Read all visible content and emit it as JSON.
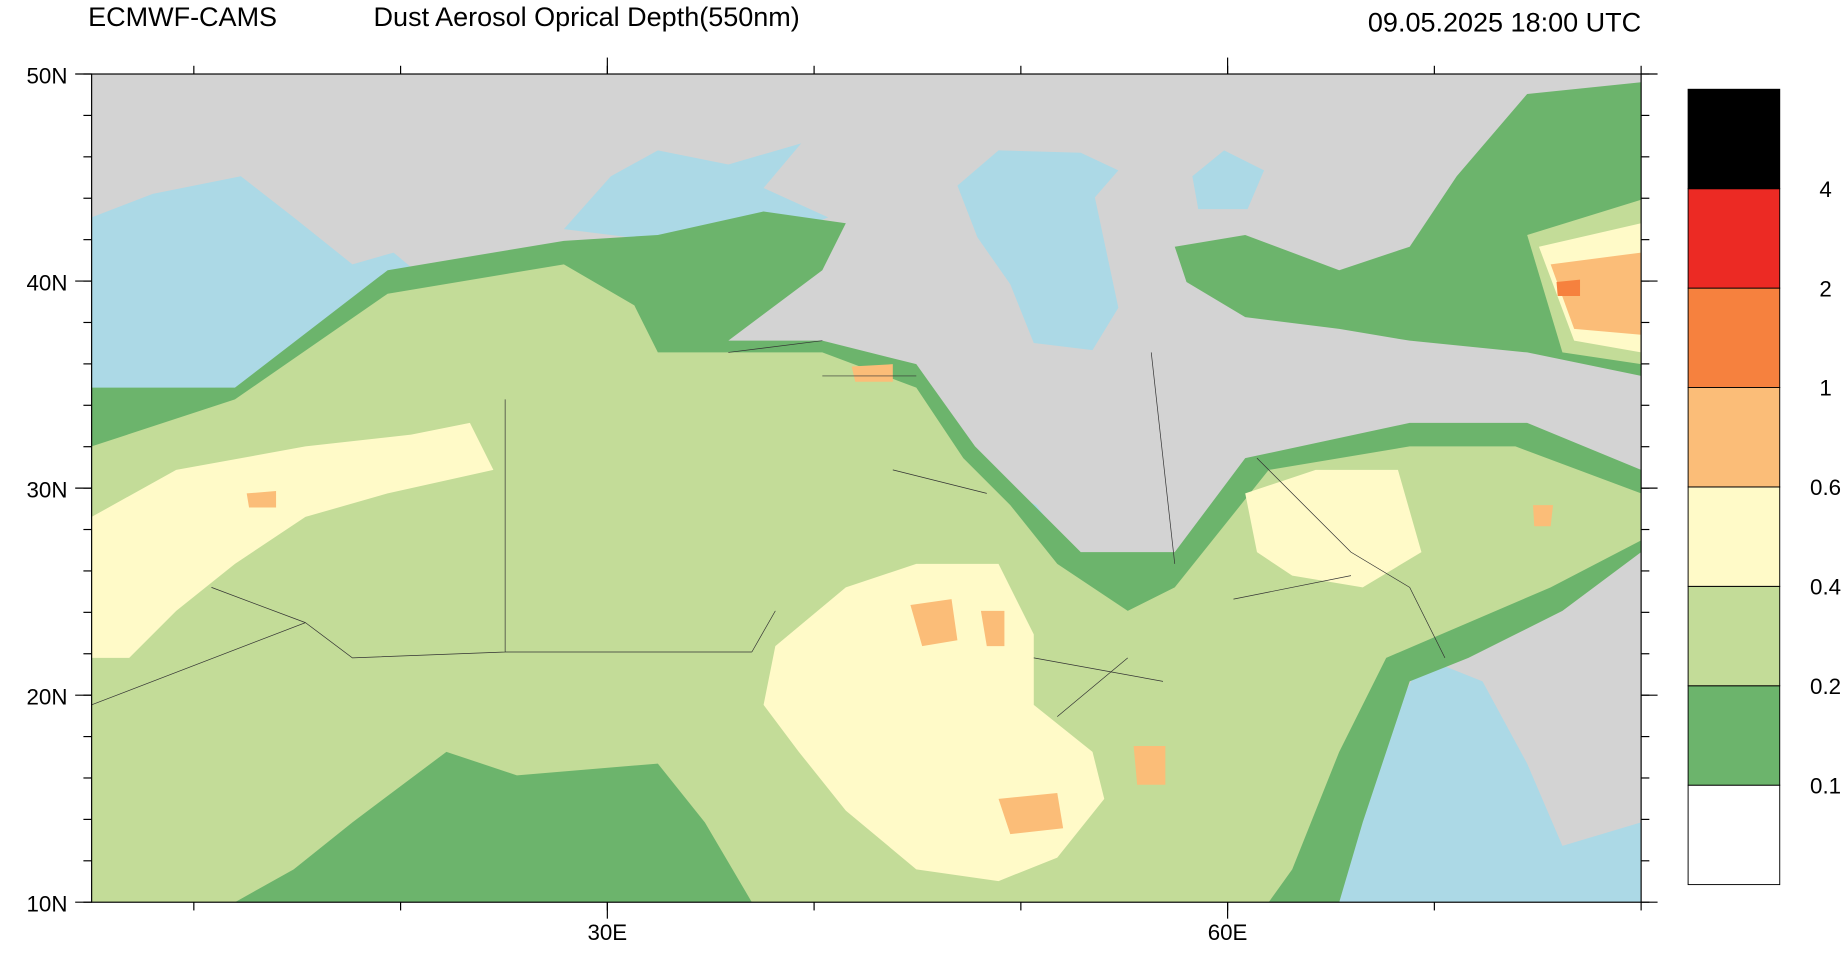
{
  "header": {
    "model": "ECMWF-CAMS",
    "product": "Dust Aerosol Oprical Depth(550nm)",
    "valid_time": "09.05.2025 18:00 UTC"
  },
  "latitude_labels": [
    "50N",
    "40N",
    "30N",
    "20N",
    "10N"
  ],
  "longitude_labels": [
    "30E",
    "60E"
  ],
  "colorbar": {
    "levels": [
      0.1,
      0.2,
      0.4,
      0.6,
      1,
      2,
      4
    ],
    "colors": [
      "#ffffff",
      "#6cb46c",
      "#c3dc98",
      "#fffac8",
      "#fbbd78",
      "#f6813e",
      "#ec2a24",
      "#000000"
    ]
  }
}
